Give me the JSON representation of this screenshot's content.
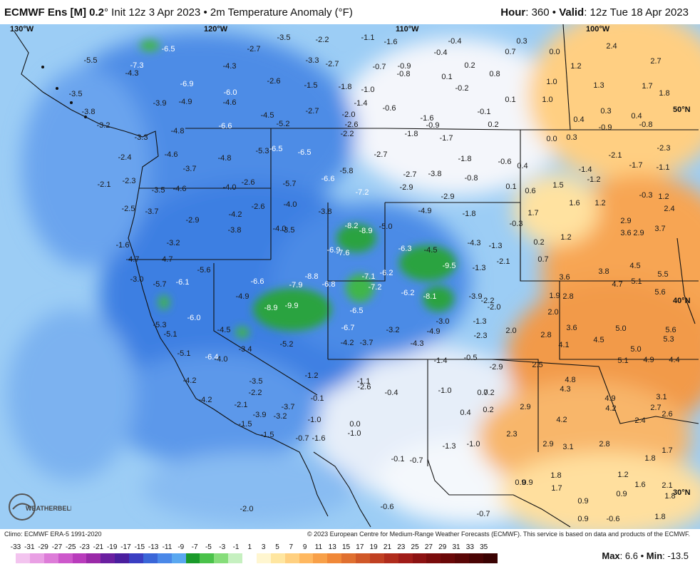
{
  "header": {
    "model": "ECMWF Ens [M] 0.2",
    "init": "° Init 12z 3 Apr 2023 • 2m Temperature Anomaly (°F)",
    "hour_label": "Hour",
    "hour": ": 360 • ",
    "valid_label": "Valid",
    "valid": ": 12z Tue 18 Apr 2023"
  },
  "map": {
    "lon_labels": [
      "130°W",
      "120°W",
      "110°W",
      "100°W"
    ],
    "lat_labels": [
      "50°N",
      "40°N",
      "30°N"
    ],
    "values": [
      {
        "t": "-3.5"
      },
      {
        "t": "-2.2"
      },
      {
        "t": "-1.1"
      },
      {
        "t": "-1.6"
      },
      {
        "t": "-0.4"
      },
      {
        "t": "0.3"
      },
      {
        "t": "-6.5"
      },
      {
        "t": "-2.7"
      },
      {
        "t": "-0.4"
      },
      {
        "t": "0.7"
      },
      {
        "t": "0.0"
      },
      {
        "t": "2.4"
      },
      {
        "t": "-5.5"
      },
      {
        "t": "-7.3"
      },
      {
        "t": "-4.3"
      },
      {
        "t": "-3.3"
      },
      {
        "t": "-2.7"
      },
      {
        "t": "-0.7"
      },
      {
        "t": "-0.9"
      },
      {
        "t": "0.2"
      },
      {
        "t": "1.2"
      },
      {
        "t": "2.7"
      },
      {
        "t": "-4.3"
      },
      {
        "t": "-0.8"
      },
      {
        "t": "0.1"
      },
      {
        "t": "0.8"
      },
      {
        "t": "-6.9"
      },
      {
        "t": "-2.6"
      },
      {
        "t": "-1.5"
      },
      {
        "t": "-1.8"
      },
      {
        "t": "-1.0"
      },
      {
        "t": "-0.2"
      },
      {
        "t": "1.0"
      },
      {
        "t": "1.3"
      },
      {
        "t": "1.7"
      },
      {
        "t": "-3.5"
      },
      {
        "t": "-6.0"
      },
      {
        "t": "1.8"
      },
      {
        "t": "-3.9"
      },
      {
        "t": "-4.9"
      },
      {
        "t": "-4.6"
      },
      {
        "t": "-1.4"
      },
      {
        "t": "-0.6"
      },
      {
        "t": "0.1"
      },
      {
        "t": "1.0"
      },
      {
        "t": "-3.8"
      },
      {
        "t": "-2.7"
      },
      {
        "t": "-0.1"
      },
      {
        "t": "0.3"
      },
      {
        "t": "-4.5"
      },
      {
        "t": "-2.0"
      },
      {
        "t": "-1.6"
      },
      {
        "t": "0.4"
      },
      {
        "t": "0.4"
      },
      {
        "t": "-3.2"
      },
      {
        "t": "-6.6"
      },
      {
        "t": "-5.2"
      },
      {
        "t": "-2.6"
      },
      {
        "t": "-0.9"
      },
      {
        "t": "0.2"
      },
      {
        "t": "-0.9"
      },
      {
        "t": "-0.8"
      },
      {
        "t": "-4.8"
      },
      {
        "t": "-2.2"
      },
      {
        "t": "-1.8"
      },
      {
        "t": "-1.7"
      },
      {
        "t": "0.0"
      },
      {
        "t": "0.3"
      },
      {
        "t": "-3.3"
      },
      {
        "t": "-5.3"
      },
      {
        "t": "-6.5"
      },
      {
        "t": "-6.5"
      },
      {
        "t": "-2.3"
      },
      {
        "t": "-4.6"
      },
      {
        "t": "-4.8"
      },
      {
        "t": "-2.7"
      },
      {
        "t": "-1.8"
      },
      {
        "t": "-2.1"
      },
      {
        "t": "-1.7"
      },
      {
        "t": "-2.4"
      },
      {
        "t": "-3.7"
      },
      {
        "t": "-5.8"
      },
      {
        "t": "-0.6"
      },
      {
        "t": "0.4"
      },
      {
        "t": "-1.4"
      },
      {
        "t": "-1.1"
      },
      {
        "t": "-2.7"
      },
      {
        "t": "-3.8"
      },
      {
        "t": "-0.8"
      },
      {
        "t": "-1.2"
      },
      {
        "t": "-2.1"
      },
      {
        "t": "-2.3"
      },
      {
        "t": "-6.6"
      },
      {
        "t": "-2.6"
      },
      {
        "t": "-5.7"
      },
      {
        "t": "-2.9"
      },
      {
        "t": "0.1"
      },
      {
        "t": "1.5"
      },
      {
        "t": "-3.5"
      },
      {
        "t": "-4.6"
      },
      {
        "t": "-4.0"
      },
      {
        "t": "-7.2"
      },
      {
        "t": "0.6"
      },
      {
        "t": "-0.3"
      },
      {
        "t": "1.2"
      },
      {
        "t": "-2.9"
      },
      {
        "t": "1.6"
      },
      {
        "t": "1.2"
      },
      {
        "t": "2.4"
      },
      {
        "t": "-2.5"
      },
      {
        "t": "-3.7"
      },
      {
        "t": "-2.6"
      },
      {
        "t": "-4.0"
      },
      {
        "t": "-3.8"
      },
      {
        "t": "-4.9"
      },
      {
        "t": "-1.8"
      },
      {
        "t": "1.7"
      },
      {
        "t": "-2.9"
      },
      {
        "t": "-4.2"
      },
      {
        "t": "-8.2"
      },
      {
        "t": "-5.0"
      },
      {
        "t": "-0.3"
      },
      {
        "t": "2.9"
      },
      {
        "t": "-3.8"
      },
      {
        "t": "-4.0"
      },
      {
        "t": "-3.5"
      },
      {
        "t": "-8.9"
      },
      {
        "t": "3.6"
      },
      {
        "t": "2.9"
      },
      {
        "t": "3.7"
      },
      {
        "t": "-3.2"
      },
      {
        "t": "1.2"
      },
      {
        "t": "-1.6"
      },
      {
        "t": "-6.9"
      },
      {
        "t": "-6.3"
      },
      {
        "t": "-4.5"
      },
      {
        "t": "-4.3"
      },
      {
        "t": "-1.3"
      },
      {
        "t": "0.2"
      },
      {
        "t": "-4.7"
      },
      {
        "t": "-4.7"
      },
      {
        "t": "-7.6"
      },
      {
        "t": "0.7"
      },
      {
        "t": "-5.6"
      },
      {
        "t": "-9.5"
      },
      {
        "t": "-1.3"
      },
      {
        "t": "-2.1"
      },
      {
        "t": "4.5"
      },
      {
        "t": "-3.0"
      },
      {
        "t": "-8.8"
      },
      {
        "t": "-7.1"
      },
      {
        "t": "-6.2"
      },
      {
        "t": "3.8"
      },
      {
        "t": "5.5"
      },
      {
        "t": "-5.7"
      },
      {
        "t": "-6.1"
      },
      {
        "t": "-6.6"
      },
      {
        "t": "-7.9"
      },
      {
        "t": "-6.8"
      },
      {
        "t": "-7.2"
      },
      {
        "t": "3.6"
      },
      {
        "t": "4.7"
      },
      {
        "t": "5.1"
      },
      {
        "t": "-4.9"
      },
      {
        "t": "-6.2"
      },
      {
        "t": "-8.1"
      },
      {
        "t": "-3.9"
      },
      {
        "t": "-2.2"
      },
      {
        "t": "1.9"
      },
      {
        "t": "2.8"
      },
      {
        "t": "5.6"
      },
      {
        "t": "-8.9"
      },
      {
        "t": "-9.9"
      },
      {
        "t": "-6.5"
      },
      {
        "t": "-2.0"
      },
      {
        "t": "2.0"
      },
      {
        "t": "-6.0"
      },
      {
        "t": "-3.0"
      },
      {
        "t": "-1.3"
      },
      {
        "t": "-5.3"
      },
      {
        "t": "-6.7"
      },
      {
        "t": "-3.2"
      },
      {
        "t": "-4.9"
      },
      {
        "t": "2.0"
      },
      {
        "t": "3.6"
      },
      {
        "t": "5.0"
      },
      {
        "t": "5.6"
      },
      {
        "t": "-5.1"
      },
      {
        "t": "-4.5"
      },
      {
        "t": "-2.3"
      },
      {
        "t": "2.8"
      },
      {
        "t": "5.3"
      },
      {
        "t": "-4.2"
      },
      {
        "t": "-3.7"
      },
      {
        "t": "-4.3"
      },
      {
        "t": "4.1"
      },
      {
        "t": "4.5"
      },
      {
        "t": "-3.4"
      },
      {
        "t": "-5.2"
      },
      {
        "t": "5.0"
      },
      {
        "t": "-5.1"
      },
      {
        "t": "-6.4"
      },
      {
        "t": "-4.0"
      },
      {
        "t": "-1.4"
      },
      {
        "t": "-0.5"
      },
      {
        "t": "5.1"
      },
      {
        "t": "4.9"
      },
      {
        "t": "4.4"
      },
      {
        "t": "-2.9"
      },
      {
        "t": "2.5"
      },
      {
        "t": "-4.2"
      },
      {
        "t": "-3.5"
      },
      {
        "t": "-1.2"
      },
      {
        "t": "-1.1"
      },
      {
        "t": "4.8"
      },
      {
        "t": "-2.6"
      },
      {
        "t": "-1.0"
      },
      {
        "t": "0.7"
      },
      {
        "t": "0.2"
      },
      {
        "t": "4.3"
      },
      {
        "t": "-2.2"
      },
      {
        "t": "-0.4"
      },
      {
        "t": "4.9"
      },
      {
        "t": "3.1"
      },
      {
        "t": "-4.2"
      },
      {
        "t": "-0.1"
      },
      {
        "t": "-2.1"
      },
      {
        "t": "-3.7"
      },
      {
        "t": "2.9"
      },
      {
        "t": "4.2"
      },
      {
        "t": "2.7"
      },
      {
        "t": "-3.9"
      },
      {
        "t": "-3.2"
      },
      {
        "t": "0.4"
      },
      {
        "t": "0.2"
      },
      {
        "t": "4.2"
      },
      {
        "t": "2.6"
      },
      {
        "t": "-1.5"
      },
      {
        "t": "-1.0"
      },
      {
        "t": "0.0"
      },
      {
        "t": "2.4"
      },
      {
        "t": "-1.5"
      },
      {
        "t": "-1.0"
      },
      {
        "t": "2.3"
      },
      {
        "t": "-0.7"
      },
      {
        "t": "-1.6"
      },
      {
        "t": "-1.3"
      },
      {
        "t": "-1.0"
      },
      {
        "t": "2.9"
      },
      {
        "t": "3.1"
      },
      {
        "t": "2.8"
      },
      {
        "t": "1.7"
      },
      {
        "t": "-0.1"
      },
      {
        "t": "-0.7"
      },
      {
        "t": "1.8"
      },
      {
        "t": "1.8"
      },
      {
        "t": "1.2"
      },
      {
        "t": "0.9"
      },
      {
        "t": "0.9"
      },
      {
        "t": "1.7"
      },
      {
        "t": "1.6"
      },
      {
        "t": "2.1"
      },
      {
        "t": "0.9"
      },
      {
        "t": "1.8"
      },
      {
        "t": "-2.0"
      },
      {
        "t": "-0.6"
      },
      {
        "t": "-0.7"
      },
      {
        "t": "0.9"
      },
      {
        "t": "-0.6"
      },
      {
        "t": "0.9"
      },
      {
        "t": "1.8"
      }
    ]
  },
  "footer": {
    "climo": "Climo: ECMWF ERA-5 1991-2020",
    "copyright": "© 2023 European Centre for Medium-Range Weather Forecasts (ECMWF). This service is based on data and products of the ECMWF.",
    "max_label": "Max",
    "max_val": ": 6.6 • ",
    "min_label": "Min",
    "min_val": ": -13.5",
    "scale": [
      "-33",
      "-31",
      "-29",
      "-27",
      "-25",
      "-23",
      "-21",
      "-19",
      "-17",
      "-15",
      "-13",
      "-11",
      "-9",
      "-7",
      "-5",
      "-3",
      "-1",
      "1",
      "3",
      "5",
      "7",
      "9",
      "11",
      "13",
      "15",
      "17",
      "19",
      "21",
      "23",
      "25",
      "27",
      "29",
      "31",
      "33",
      "35"
    ],
    "scale_colors": [
      "#f3c4ef",
      "#e9a0e4",
      "#dd7cd8",
      "#cd58cb",
      "#b93cbc",
      "#9a2aa8",
      "#6a1fa0",
      "#4a1e9e",
      "#3a3ec2",
      "#3a66d8",
      "#4a88e8",
      "#5aa8f0",
      "#1a9a2a",
      "#4ac24a",
      "#86dd7a",
      "#c6f0c0",
      "#ffffff",
      "#fff6d0",
      "#ffe6a0",
      "#ffd080",
      "#ffb860",
      "#f8a048",
      "#f08838",
      "#e07030",
      "#d05828",
      "#c04022",
      "#b02c1c",
      "#a01c18",
      "#8c1212",
      "#7a0c0c",
      "#6a0808",
      "#5a0606",
      "#4a0404",
      "#3a0202"
    ],
    "logo_text": "WEATHERBELL"
  }
}
